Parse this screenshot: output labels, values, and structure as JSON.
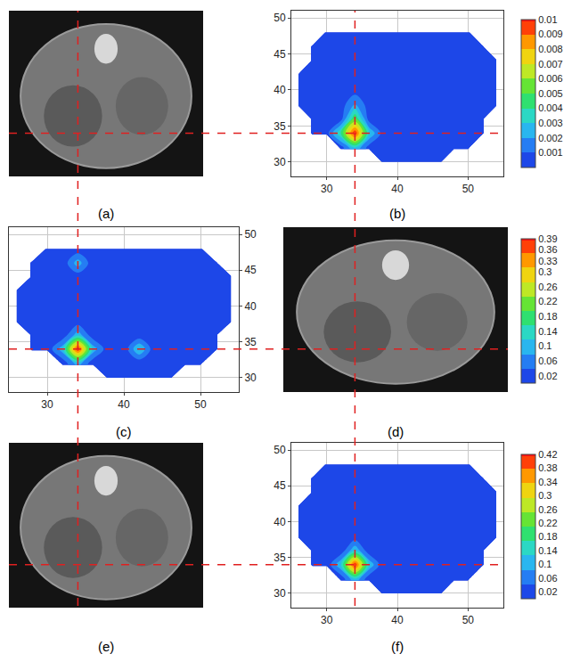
{
  "chart_data": [
    {
      "type": "contour",
      "label": "(b)",
      "x": [
        26,
        28,
        30,
        32,
        34,
        36,
        38,
        40,
        42,
        44,
        46,
        48,
        50,
        52,
        54
      ],
      "y": [
        30,
        32,
        34,
        36,
        38,
        40,
        42,
        44,
        46,
        48
      ],
      "z": [
        [
          null,
          null,
          null,
          null,
          null,
          null,
          0.0005,
          0.0005,
          0.0005,
          0.0005,
          0.0005,
          null,
          null,
          null,
          null
        ],
        [
          null,
          null,
          null,
          0.0005,
          0.003,
          0.0005,
          0.0005,
          0.0005,
          0.0005,
          0.0005,
          0.0005,
          0.0005,
          0.0005,
          null,
          null
        ],
        [
          null,
          0.0005,
          0.0005,
          0.004,
          0.01,
          0.003,
          0.0005,
          0.0005,
          0.0005,
          0.0005,
          0.0005,
          0.0005,
          0.0005,
          0.0005,
          null
        ],
        [
          null,
          0.0005,
          0.0005,
          0.0005,
          0.005,
          0.0005,
          0.0005,
          0.0005,
          0.0005,
          0.0005,
          0.0005,
          0.0005,
          0.0005,
          0.0005,
          null
        ],
        [
          0.0005,
          0.0005,
          0.0005,
          0.0005,
          0.002,
          0.0005,
          0.0005,
          0.0005,
          0.0005,
          0.0005,
          0.0005,
          0.0005,
          0.0005,
          0.0005,
          0.0005
        ],
        [
          0.0005,
          0.0005,
          0.0005,
          0.0005,
          0.0005,
          0.0005,
          0.0005,
          0.0005,
          0.0005,
          0.0005,
          0.0005,
          0.0005,
          0.0005,
          0.0005,
          0.0005
        ],
        [
          0.0005,
          0.0005,
          0.0005,
          0.0005,
          0.0005,
          0.0005,
          0.0005,
          0.0005,
          0.0005,
          0.0005,
          0.0005,
          0.0005,
          0.0005,
          0.0005,
          0.0005
        ],
        [
          null,
          0.0005,
          0.0005,
          0.0005,
          0.0005,
          0.0005,
          0.0005,
          0.0005,
          0.0005,
          0.0005,
          0.0005,
          0.0005,
          0.0005,
          0.0005,
          0.0005
        ],
        [
          null,
          0.0005,
          0.0005,
          0.0005,
          0.0005,
          0.0005,
          0.0005,
          0.0005,
          0.0005,
          0.0005,
          0.0005,
          0.0005,
          0.0005,
          0.0005,
          null
        ],
        [
          null,
          null,
          0.0005,
          0.0005,
          0.0005,
          0.0005,
          0.0005,
          0.0005,
          0.0005,
          0.0005,
          0.0005,
          0.0005,
          0.0005,
          null,
          null
        ]
      ],
      "xlim": [
        25,
        55
      ],
      "ylim": [
        28,
        51
      ],
      "xticks": [
        30,
        40,
        50
      ],
      "yticks": [
        30,
        35,
        40,
        45,
        50
      ],
      "grid": true,
      "colorbar": {
        "range": [
          0,
          0.01
        ],
        "ticks": [
          0.001,
          0.002,
          0.003,
          0.004,
          0.005,
          0.006,
          0.007,
          0.008,
          0.009,
          0.01
        ]
      }
    },
    {
      "type": "contour",
      "label": "(c)",
      "x": [
        26,
        28,
        30,
        32,
        34,
        36,
        38,
        40,
        42,
        44,
        46,
        48,
        50,
        52,
        54
      ],
      "y": [
        30,
        32,
        34,
        36,
        38,
        40,
        42,
        44,
        46,
        48
      ],
      "z": [
        [
          null,
          null,
          null,
          null,
          null,
          null,
          0.01,
          0.01,
          0.01,
          0.01,
          0.01,
          null,
          null,
          null,
          null
        ],
        [
          null,
          null,
          null,
          0.01,
          0.1,
          0.01,
          0.01,
          0.01,
          0.01,
          0.01,
          0.01,
          0.01,
          0.01,
          null,
          null
        ],
        [
          null,
          0.01,
          0.01,
          0.1,
          0.39,
          0.1,
          0.01,
          0.01,
          0.12,
          0.01,
          0.01,
          0.01,
          0.01,
          0.01,
          null
        ],
        [
          null,
          0.01,
          0.01,
          0.01,
          0.1,
          0.01,
          0.01,
          0.01,
          0.01,
          0.01,
          0.01,
          0.01,
          0.01,
          0.01,
          null
        ],
        [
          0.01,
          0.01,
          0.01,
          0.01,
          0.01,
          0.01,
          0.01,
          0.01,
          0.01,
          0.01,
          0.01,
          0.01,
          0.01,
          0.01,
          0.01
        ],
        [
          0.04,
          0.01,
          0.01,
          0.01,
          0.01,
          0.01,
          0.01,
          0.01,
          0.01,
          0.01,
          0.01,
          0.01,
          0.01,
          0.01,
          0.01
        ],
        [
          0.01,
          0.01,
          0.01,
          0.01,
          0.01,
          0.01,
          0.01,
          0.01,
          0.01,
          0.01,
          0.01,
          0.01,
          0.01,
          0.01,
          0.01
        ],
        [
          null,
          0.01,
          0.01,
          0.01,
          0.01,
          0.01,
          0.01,
          0.01,
          0.01,
          0.01,
          0.01,
          0.01,
          0.01,
          0.01,
          0.01
        ],
        [
          null,
          0.01,
          0.01,
          0.01,
          0.1,
          0.01,
          0.01,
          0.01,
          0.01,
          0.01,
          0.01,
          0.01,
          0.01,
          0.01,
          null
        ],
        [
          null,
          null,
          0.01,
          0.01,
          0.01,
          0.01,
          0.01,
          0.01,
          0.01,
          0.01,
          0.01,
          0.01,
          0.01,
          null,
          null
        ]
      ],
      "xlim": [
        25,
        55
      ],
      "ylim": [
        28,
        51
      ],
      "xticks": [
        30,
        40,
        50
      ],
      "yticks": [
        30,
        35,
        40,
        45,
        50
      ],
      "grid": true,
      "colorbar": {
        "range": [
          0,
          0.39
        ],
        "ticks": [
          0.02,
          0.06,
          0.1,
          0.14,
          0.18,
          0.22,
          0.26,
          0.3,
          0.33,
          0.36,
          0.39
        ]
      }
    },
    {
      "type": "contour",
      "label": "(f)",
      "x": [
        26,
        28,
        30,
        32,
        34,
        36,
        38,
        40,
        42,
        44,
        46,
        48,
        50,
        52,
        54
      ],
      "y": [
        30,
        32,
        34,
        36,
        38,
        40,
        42,
        44,
        46,
        48
      ],
      "z": [
        [
          null,
          null,
          null,
          null,
          null,
          null,
          0.01,
          0.01,
          0.01,
          0.01,
          0.01,
          null,
          null,
          null,
          null
        ],
        [
          null,
          null,
          null,
          0.01,
          0.12,
          0.01,
          0.01,
          0.01,
          0.01,
          0.01,
          0.01,
          0.01,
          0.01,
          null,
          null
        ],
        [
          null,
          0.01,
          0.01,
          0.12,
          0.42,
          0.12,
          0.01,
          0.01,
          0.01,
          0.01,
          0.01,
          0.01,
          0.01,
          0.01,
          null
        ],
        [
          null,
          0.01,
          0.01,
          0.01,
          0.12,
          0.01,
          0.01,
          0.01,
          0.01,
          0.01,
          0.01,
          0.01,
          0.01,
          0.01,
          null
        ],
        [
          0.01,
          0.01,
          0.01,
          0.01,
          0.01,
          0.01,
          0.01,
          0.01,
          0.01,
          0.01,
          0.01,
          0.01,
          0.01,
          0.01,
          0.01
        ],
        [
          0.01,
          0.01,
          0.01,
          0.01,
          0.01,
          0.01,
          0.01,
          0.01,
          0.01,
          0.01,
          0.01,
          0.01,
          0.01,
          0.01,
          0.01
        ],
        [
          0.01,
          0.01,
          0.01,
          0.01,
          0.01,
          0.01,
          0.01,
          0.01,
          0.01,
          0.01,
          0.01,
          0.01,
          0.01,
          0.01,
          0.01
        ],
        [
          null,
          0.01,
          0.01,
          0.01,
          0.01,
          0.01,
          0.01,
          0.01,
          0.01,
          0.01,
          0.01,
          0.01,
          0.01,
          0.01,
          0.01
        ],
        [
          null,
          0.01,
          0.01,
          0.01,
          0.01,
          0.01,
          0.01,
          0.01,
          0.01,
          0.01,
          0.01,
          0.01,
          0.01,
          0.01,
          null
        ],
        [
          null,
          null,
          0.01,
          0.01,
          0.01,
          0.01,
          0.01,
          0.01,
          0.01,
          0.01,
          0.01,
          0.01,
          0.01,
          null,
          null
        ]
      ],
      "xlim": [
        25,
        55
      ],
      "ylim": [
        28,
        51
      ],
      "xticks": [
        30,
        40,
        50
      ],
      "yticks": [
        30,
        35,
        40,
        45,
        50
      ],
      "grid": true,
      "colorbar": {
        "range": [
          0,
          0.42
        ],
        "ticks": [
          0.02,
          0.06,
          0.1,
          0.14,
          0.18,
          0.22,
          0.26,
          0.3,
          0.34,
          0.38,
          0.42
        ]
      }
    }
  ],
  "images": [
    {
      "label": "(a)"
    },
    {
      "label": "(d)"
    },
    {
      "label": "(e)"
    }
  ]
}
